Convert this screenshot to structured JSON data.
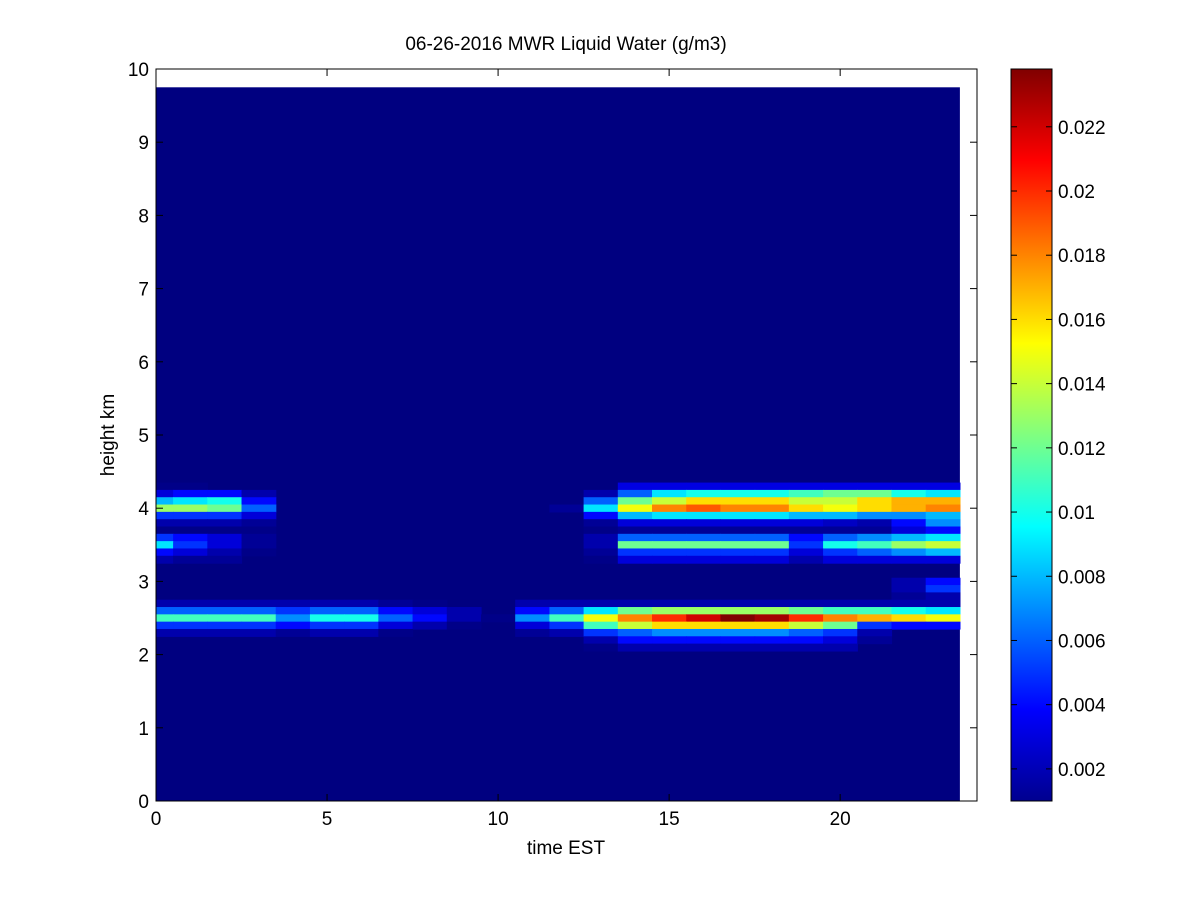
{
  "chart_data": {
    "type": "heatmap",
    "title": "06-26-2016 MWR Liquid Water (g/m3)",
    "xlabel": "time EST",
    "ylabel": "height km",
    "xlim": [
      0,
      24
    ],
    "ylim": [
      0,
      10
    ],
    "x_ticks": [
      "0",
      "5",
      "10",
      "15",
      "20"
    ],
    "y_ticks": [
      "0",
      "1",
      "2",
      "3",
      "4",
      "5",
      "6",
      "7",
      "8",
      "9",
      "10"
    ],
    "colormap": "jet",
    "colorbar": {
      "min": 0.001,
      "max": 0.0238,
      "ticks": [
        "0.002",
        "0.004",
        "0.006",
        "0.008",
        "0.01",
        "0.012",
        "0.014",
        "0.016",
        "0.018",
        "0.02",
        "0.022"
      ]
    },
    "background_value": 0.001,
    "data_extent": {
      "time_start": 0,
      "time_end": 23.5,
      "height_top": 9.75
    },
    "time_bins": [
      0,
      1,
      2,
      3,
      4,
      5,
      6,
      7,
      8,
      9,
      10,
      11,
      12,
      13,
      14,
      15,
      16,
      17,
      18,
      19,
      20,
      21,
      22,
      23
    ],
    "height_bins_km": [
      4.3,
      4.2,
      4.1,
      4.0,
      3.9,
      3.8,
      3.7,
      3.6,
      3.5,
      3.4,
      3.3,
      3.2,
      3.1,
      3.0,
      2.9,
      2.8,
      2.7,
      2.6,
      2.5,
      2.4,
      2.3,
      2.2,
      2.1
    ],
    "liquid_water_g_m3": [
      [
        0.0012,
        0.0012,
        0.001,
        0.001,
        0.001,
        0.001,
        0.001,
        0.001,
        0.001,
        0.001,
        0.001,
        0.001,
        0.001,
        0.001,
        0.0032,
        0.0032,
        0.0032,
        0.0032,
        0.0032,
        0.0032,
        0.0032,
        0.0032,
        0.0032,
        0.0032
      ],
      [
        0.003,
        0.004,
        0.004,
        0.002,
        0.001,
        0.001,
        0.001,
        0.001,
        0.001,
        0.001,
        0.001,
        0.001,
        0.001,
        0.002,
        0.006,
        0.009,
        0.01,
        0.01,
        0.01,
        0.011,
        0.012,
        0.012,
        0.01,
        0.009
      ],
      [
        0.008,
        0.009,
        0.01,
        0.004,
        0.001,
        0.001,
        0.001,
        0.001,
        0.001,
        0.001,
        0.001,
        0.001,
        0.001,
        0.006,
        0.012,
        0.014,
        0.016,
        0.016,
        0.016,
        0.014,
        0.014,
        0.016,
        0.017,
        0.017
      ],
      [
        0.013,
        0.013,
        0.012,
        0.006,
        0.001,
        0.001,
        0.001,
        0.001,
        0.001,
        0.001,
        0.001,
        0.001,
        0.0015,
        0.009,
        0.015,
        0.018,
        0.019,
        0.018,
        0.018,
        0.016,
        0.015,
        0.016,
        0.017,
        0.018
      ],
      [
        0.005,
        0.005,
        0.005,
        0.003,
        0.001,
        0.001,
        0.001,
        0.001,
        0.001,
        0.001,
        0.001,
        0.001,
        0.001,
        0.004,
        0.008,
        0.009,
        0.009,
        0.009,
        0.009,
        0.008,
        0.008,
        0.007,
        0.007,
        0.008
      ],
      [
        0.002,
        0.002,
        0.002,
        0.0015,
        0.001,
        0.001,
        0.001,
        0.001,
        0.001,
        0.001,
        0.001,
        0.001,
        0.001,
        0.0015,
        0.003,
        0.003,
        0.003,
        0.003,
        0.003,
        0.003,
        0.0025,
        0.002,
        0.004,
        0.007
      ],
      [
        0.0012,
        0.0012,
        0.0012,
        0.0012,
        0.001,
        0.001,
        0.001,
        0.001,
        0.001,
        0.001,
        0.001,
        0.001,
        0.001,
        0.0012,
        0.0015,
        0.0015,
        0.0015,
        0.0015,
        0.0015,
        0.0015,
        0.0015,
        0.0015,
        0.003,
        0.004
      ],
      [
        0.005,
        0.004,
        0.003,
        0.0015,
        0.001,
        0.001,
        0.001,
        0.001,
        0.001,
        0.001,
        0.001,
        0.001,
        0.001,
        0.002,
        0.006,
        0.006,
        0.006,
        0.006,
        0.006,
        0.004,
        0.006,
        0.007,
        0.008,
        0.009
      ],
      [
        0.009,
        0.005,
        0.003,
        0.0015,
        0.001,
        0.001,
        0.001,
        0.001,
        0.001,
        0.001,
        0.001,
        0.001,
        0.001,
        0.002,
        0.012,
        0.012,
        0.012,
        0.012,
        0.012,
        0.005,
        0.01,
        0.011,
        0.013,
        0.014
      ],
      [
        0.004,
        0.003,
        0.002,
        0.0012,
        0.001,
        0.001,
        0.001,
        0.001,
        0.001,
        0.001,
        0.001,
        0.001,
        0.001,
        0.0015,
        0.005,
        0.005,
        0.005,
        0.005,
        0.005,
        0.003,
        0.005,
        0.006,
        0.007,
        0.008
      ],
      [
        0.002,
        0.0015,
        0.0015,
        0.001,
        0.001,
        0.001,
        0.001,
        0.001,
        0.001,
        0.001,
        0.001,
        0.001,
        0.001,
        0.0012,
        0.003,
        0.003,
        0.003,
        0.003,
        0.003,
        0.002,
        0.003,
        0.003,
        0.003,
        0.003
      ],
      [
        0.001,
        0.001,
        0.001,
        0.001,
        0.001,
        0.001,
        0.001,
        0.001,
        0.001,
        0.001,
        0.001,
        0.001,
        0.001,
        0.001,
        0.001,
        0.001,
        0.001,
        0.001,
        0.001,
        0.001,
        0.001,
        0.001,
        0.001,
        0.001
      ],
      [
        0.001,
        0.001,
        0.001,
        0.001,
        0.001,
        0.001,
        0.001,
        0.001,
        0.001,
        0.001,
        0.001,
        0.001,
        0.001,
        0.001,
        0.001,
        0.001,
        0.001,
        0.001,
        0.001,
        0.001,
        0.001,
        0.001,
        0.001,
        0.001
      ],
      [
        0.001,
        0.001,
        0.001,
        0.001,
        0.001,
        0.001,
        0.001,
        0.001,
        0.001,
        0.001,
        0.001,
        0.001,
        0.001,
        0.001,
        0.001,
        0.001,
        0.001,
        0.001,
        0.001,
        0.001,
        0.001,
        0.001,
        0.002,
        0.004
      ],
      [
        0.001,
        0.001,
        0.001,
        0.001,
        0.001,
        0.001,
        0.001,
        0.001,
        0.001,
        0.001,
        0.001,
        0.001,
        0.001,
        0.001,
        0.001,
        0.001,
        0.001,
        0.001,
        0.001,
        0.001,
        0.001,
        0.001,
        0.002,
        0.005
      ],
      [
        0.001,
        0.001,
        0.001,
        0.001,
        0.001,
        0.001,
        0.001,
        0.001,
        0.001,
        0.001,
        0.001,
        0.001,
        0.001,
        0.001,
        0.001,
        0.001,
        0.001,
        0.001,
        0.001,
        0.001,
        0.001,
        0.001,
        0.0015,
        0.002
      ],
      [
        0.002,
        0.002,
        0.002,
        0.002,
        0.002,
        0.002,
        0.002,
        0.0015,
        0.0012,
        0.001,
        0.001,
        0.002,
        0.002,
        0.002,
        0.002,
        0.002,
        0.002,
        0.002,
        0.002,
        0.002,
        0.002,
        0.002,
        0.002,
        0.002
      ],
      [
        0.006,
        0.006,
        0.006,
        0.006,
        0.005,
        0.006,
        0.006,
        0.004,
        0.003,
        0.002,
        0.001,
        0.004,
        0.006,
        0.009,
        0.012,
        0.013,
        0.013,
        0.013,
        0.013,
        0.012,
        0.011,
        0.011,
        0.01,
        0.009
      ],
      [
        0.011,
        0.011,
        0.011,
        0.011,
        0.007,
        0.01,
        0.01,
        0.006,
        0.004,
        0.002,
        0.0012,
        0.007,
        0.011,
        0.015,
        0.018,
        0.02,
        0.022,
        0.024,
        0.023,
        0.02,
        0.018,
        0.017,
        0.016,
        0.015
      ],
      [
        0.005,
        0.005,
        0.005,
        0.005,
        0.004,
        0.005,
        0.005,
        0.003,
        0.002,
        0.0012,
        0.001,
        0.003,
        0.005,
        0.011,
        0.014,
        0.016,
        0.016,
        0.016,
        0.016,
        0.014,
        0.012,
        0.005,
        0.004,
        0.004
      ],
      [
        0.002,
        0.002,
        0.002,
        0.002,
        0.0015,
        0.002,
        0.002,
        0.0012,
        0.001,
        0.001,
        0.001,
        0.0015,
        0.002,
        0.005,
        0.006,
        0.007,
        0.007,
        0.007,
        0.007,
        0.006,
        0.005,
        0.002,
        0.001,
        0.001
      ],
      [
        0.001,
        0.001,
        0.001,
        0.001,
        0.001,
        0.001,
        0.001,
        0.001,
        0.001,
        0.001,
        0.001,
        0.001,
        0.001,
        0.002,
        0.004,
        0.004,
        0.004,
        0.004,
        0.004,
        0.004,
        0.003,
        0.0015,
        0.001,
        0.001
      ],
      [
        0.001,
        0.001,
        0.001,
        0.001,
        0.001,
        0.001,
        0.001,
        0.001,
        0.001,
        0.001,
        0.001,
        0.001,
        0.001,
        0.0012,
        0.002,
        0.002,
        0.002,
        0.002,
        0.002,
        0.002,
        0.002,
        0.001,
        0.001,
        0.001
      ]
    ]
  }
}
